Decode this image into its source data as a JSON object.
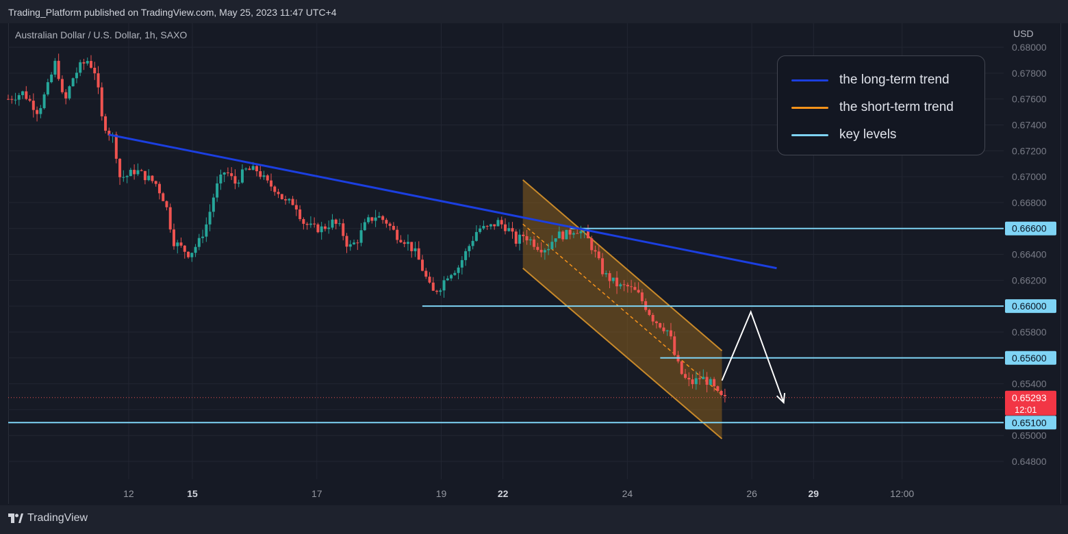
{
  "header": {
    "published": "Trading_Platform published on TradingView.com, May 25, 2023 11:47 UTC+4"
  },
  "chart_data": {
    "type": "candlestick",
    "symbol_title": "Australian Dollar / U.S. Dollar, 1h, SAXO",
    "currency": "USD",
    "ylim": [
      0.647,
      0.6815
    ],
    "y_ticks": [
      "0.68000",
      "0.67800",
      "0.67600",
      "0.67400",
      "0.67200",
      "0.67000",
      "0.66800",
      "0.66600",
      "0.66400",
      "0.66200",
      "0.66000",
      "0.65800",
      "0.65600",
      "0.65400",
      "0.65200",
      "0.65000",
      "0.64800"
    ],
    "x_ticks": [
      {
        "label": "12",
        "pos": 0.121,
        "bold": false
      },
      {
        "label": "15",
        "pos": 0.185,
        "bold": true
      },
      {
        "label": "17",
        "pos": 0.31,
        "bold": false
      },
      {
        "label": "19",
        "pos": 0.435,
        "bold": false
      },
      {
        "label": "22",
        "pos": 0.497,
        "bold": true
      },
      {
        "label": "24",
        "pos": 0.622,
        "bold": false
      },
      {
        "label": "26",
        "pos": 0.747,
        "bold": false
      },
      {
        "label": "29",
        "pos": 0.809,
        "bold": true
      },
      {
        "label": "12:00",
        "pos": 0.898,
        "bold": false
      }
    ],
    "candles_anchor": [
      [
        0.0,
        0.676
      ],
      [
        0.015,
        0.6765
      ],
      [
        0.03,
        0.675
      ],
      [
        0.04,
        0.677
      ],
      [
        0.048,
        0.679
      ],
      [
        0.056,
        0.6755
      ],
      [
        0.064,
        0.6775
      ],
      [
        0.072,
        0.6785
      ],
      [
        0.08,
        0.679
      ],
      [
        0.088,
        0.678
      ],
      [
        0.094,
        0.6745
      ],
      [
        0.1,
        0.6735
      ],
      [
        0.106,
        0.673
      ],
      [
        0.112,
        0.67
      ],
      [
        0.118,
        0.67
      ],
      [
        0.128,
        0.6705
      ],
      [
        0.138,
        0.67
      ],
      [
        0.148,
        0.6695
      ],
      [
        0.158,
        0.668
      ],
      [
        0.166,
        0.665
      ],
      [
        0.174,
        0.6645
      ],
      [
        0.182,
        0.664
      ],
      [
        0.192,
        0.665
      ],
      [
        0.2,
        0.6665
      ],
      [
        0.208,
        0.669
      ],
      [
        0.218,
        0.6705
      ],
      [
        0.228,
        0.6695
      ],
      [
        0.238,
        0.6705
      ],
      [
        0.25,
        0.6705
      ],
      [
        0.26,
        0.6695
      ],
      [
        0.27,
        0.669
      ],
      [
        0.278,
        0.668
      ],
      [
        0.288,
        0.668
      ],
      [
        0.296,
        0.6665
      ],
      [
        0.306,
        0.666
      ],
      [
        0.316,
        0.666
      ],
      [
        0.326,
        0.6665
      ],
      [
        0.334,
        0.666
      ],
      [
        0.342,
        0.6645
      ],
      [
        0.35,
        0.665
      ],
      [
        0.36,
        0.6665
      ],
      [
        0.37,
        0.667
      ],
      [
        0.38,
        0.6665
      ],
      [
        0.39,
        0.6655
      ],
      [
        0.4,
        0.665
      ],
      [
        0.41,
        0.664
      ],
      [
        0.418,
        0.6625
      ],
      [
        0.426,
        0.661
      ],
      [
        0.434,
        0.6615
      ],
      [
        0.442,
        0.6625
      ],
      [
        0.452,
        0.663
      ],
      [
        0.462,
        0.6645
      ],
      [
        0.472,
        0.666
      ],
      [
        0.482,
        0.666
      ],
      [
        0.492,
        0.6665
      ],
      [
        0.502,
        0.666
      ],
      [
        0.51,
        0.665
      ],
      [
        0.518,
        0.6655
      ],
      [
        0.526,
        0.665
      ],
      [
        0.534,
        0.6645
      ],
      [
        0.542,
        0.6645
      ],
      [
        0.55,
        0.6655
      ],
      [
        0.56,
        0.6655
      ],
      [
        0.57,
        0.666
      ],
      [
        0.58,
        0.6655
      ],
      [
        0.59,
        0.664
      ],
      [
        0.598,
        0.6625
      ],
      [
        0.606,
        0.662
      ],
      [
        0.614,
        0.6615
      ],
      [
        0.622,
        0.6615
      ],
      [
        0.632,
        0.661
      ],
      [
        0.64,
        0.66
      ],
      [
        0.648,
        0.659
      ],
      [
        0.656,
        0.6585
      ],
      [
        0.664,
        0.658
      ],
      [
        0.67,
        0.656
      ],
      [
        0.678,
        0.6545
      ],
      [
        0.686,
        0.654
      ],
      [
        0.696,
        0.6545
      ],
      [
        0.706,
        0.654
      ],
      [
        0.714,
        0.653
      ],
      [
        0.72,
        0.6528
      ]
    ],
    "indicators": {
      "long_term_trend": {
        "color": "#1b3fe0",
        "points": [
          [
            0.101,
            0.67325
          ],
          [
            0.772,
            0.66293
          ]
        ]
      },
      "channel": {
        "fill": "#a16c1a",
        "border": "#c98a2a",
        "upper": [
          [
            0.517,
            0.66975
          ],
          [
            0.717,
            0.65655
          ]
        ],
        "lower": [
          [
            0.517,
            0.66293
          ],
          [
            0.717,
            0.64975
          ]
        ],
        "median": [
          [
            0.517,
            0.66634
          ],
          [
            0.717,
            0.65315
          ]
        ]
      },
      "key_levels": [
        {
          "price": "0.66600",
          "value": 0.666,
          "x_start": 0.565
        },
        {
          "price": "0.66000",
          "value": 0.66,
          "x_start": 0.416
        },
        {
          "price": "0.65600",
          "value": 0.656,
          "x_start": 0.655
        },
        {
          "price": "0.65100",
          "value": 0.651,
          "x_start": 0.0
        }
      ],
      "projection_path": [
        [
          0.717,
          0.65425
        ],
        [
          0.746,
          0.65955
        ],
        [
          0.779,
          0.65255
        ]
      ],
      "current_price": {
        "price": "0.65293",
        "value": 0.65293,
        "countdown": "12:01"
      }
    },
    "legend": [
      {
        "label": "the long-term trend",
        "color": "#1b3fe0"
      },
      {
        "label": "the short-term trend",
        "color": "#f7931a"
      },
      {
        "label": "key levels",
        "color": "#7fd4f5"
      }
    ]
  },
  "footer": {
    "brand": "TradingView"
  }
}
